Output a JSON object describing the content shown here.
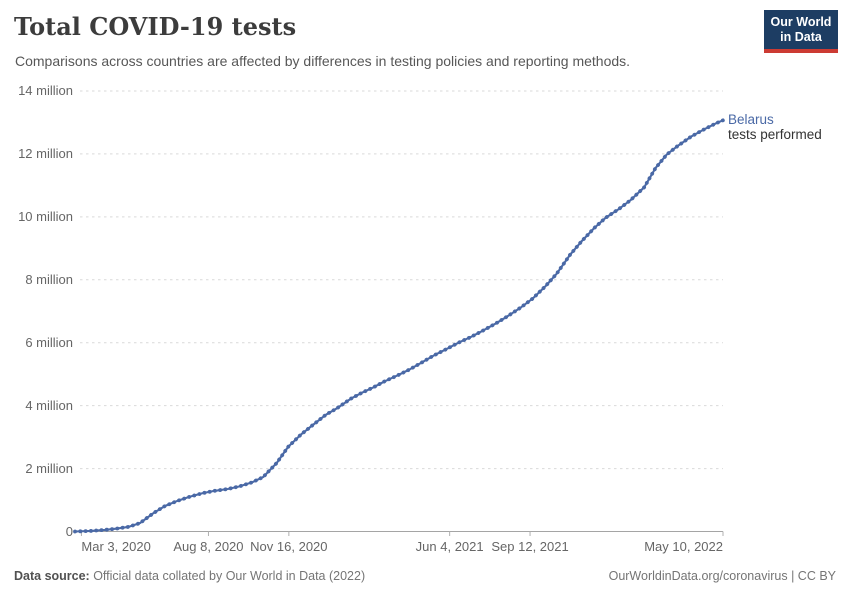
{
  "header": {
    "title": "Total COVID-19 tests",
    "subtitle": "Comparisons across countries are affected by differences in testing policies and reporting methods.",
    "logo": {
      "line1": "Our World",
      "line2": "in Data"
    }
  },
  "series_label": {
    "name": "Belarus",
    "sublabel": "tests performed"
  },
  "footer": {
    "source_label": "Data source:",
    "source_text": " Official data collated by Our World in Data (2022)",
    "link_text": "OurWorldinData.org/coronavirus | CC BY"
  },
  "colors": {
    "line": "#4a69a6",
    "entity_label": "#4a69a6",
    "gridline": "#d9d9d9",
    "axis_line": "#a5a5a5",
    "tick_text": "#666666",
    "logo_bg": "#1d3d63",
    "logo_red": "#cc3b33"
  },
  "chart_data": {
    "type": "line",
    "title": "Total COVID-19 tests",
    "entity": "Belarus",
    "unit": "tests performed",
    "xlabel": "",
    "ylabel": "",
    "ylim": [
      0,
      14000000
    ],
    "grid": "dashed-horizontal",
    "legend_position": "end-of-line-label",
    "y_axis": {
      "ticks": [
        {
          "value": 0,
          "label": "0"
        },
        {
          "value": 2000000,
          "label": "2 million"
        },
        {
          "value": 4000000,
          "label": "4 million"
        },
        {
          "value": 6000000,
          "label": "6 million"
        },
        {
          "value": 8000000,
          "label": "8 million"
        },
        {
          "value": 10000000,
          "label": "10 million"
        },
        {
          "value": 12000000,
          "label": "12 million"
        },
        {
          "value": 14000000,
          "label": "14 million"
        }
      ]
    },
    "x_axis": {
      "ticks": [
        {
          "date": "2020-03-03",
          "label": "Mar 3, 2020"
        },
        {
          "date": "2020-08-08",
          "label": "Aug 8, 2020"
        },
        {
          "date": "2020-11-16",
          "label": "Nov 16, 2020"
        },
        {
          "date": "2021-06-04",
          "label": "Jun 4, 2021"
        },
        {
          "date": "2021-09-12",
          "label": "Sep 12, 2021"
        },
        {
          "date": "2022-05-10",
          "label": "May 10, 2022"
        }
      ]
    },
    "series": [
      {
        "name": "Belarus",
        "points": [
          {
            "date": "2020-02-24",
            "value": 0
          },
          {
            "date": "2020-03-15",
            "value": 20000
          },
          {
            "date": "2020-04-01",
            "value": 50000
          },
          {
            "date": "2020-04-15",
            "value": 90000
          },
          {
            "date": "2020-05-01",
            "value": 150000
          },
          {
            "date": "2020-05-15",
            "value": 270000
          },
          {
            "date": "2020-06-01",
            "value": 590000
          },
          {
            "date": "2020-06-15",
            "value": 810000
          },
          {
            "date": "2020-07-01",
            "value": 980000
          },
          {
            "date": "2020-07-15",
            "value": 1100000
          },
          {
            "date": "2020-08-01",
            "value": 1220000
          },
          {
            "date": "2020-08-15",
            "value": 1290000
          },
          {
            "date": "2020-09-01",
            "value": 1350000
          },
          {
            "date": "2020-09-15",
            "value": 1430000
          },
          {
            "date": "2020-10-01",
            "value": 1560000
          },
          {
            "date": "2020-10-15",
            "value": 1730000
          },
          {
            "date": "2020-11-01",
            "value": 2180000
          },
          {
            "date": "2020-11-15",
            "value": 2690000
          },
          {
            "date": "2020-12-01",
            "value": 3080000
          },
          {
            "date": "2020-12-15",
            "value": 3370000
          },
          {
            "date": "2021-01-01",
            "value": 3710000
          },
          {
            "date": "2021-01-15",
            "value": 3920000
          },
          {
            "date": "2021-02-01",
            "value": 4220000
          },
          {
            "date": "2021-02-15",
            "value": 4410000
          },
          {
            "date": "2021-03-01",
            "value": 4580000
          },
          {
            "date": "2021-03-15",
            "value": 4770000
          },
          {
            "date": "2021-04-01",
            "value": 4970000
          },
          {
            "date": "2021-04-15",
            "value": 5150000
          },
          {
            "date": "2021-05-01",
            "value": 5380000
          },
          {
            "date": "2021-05-15",
            "value": 5590000
          },
          {
            "date": "2021-06-01",
            "value": 5810000
          },
          {
            "date": "2021-06-15",
            "value": 6000000
          },
          {
            "date": "2021-07-01",
            "value": 6190000
          },
          {
            "date": "2021-07-15",
            "value": 6380000
          },
          {
            "date": "2021-08-01",
            "value": 6620000
          },
          {
            "date": "2021-08-15",
            "value": 6840000
          },
          {
            "date": "2021-09-01",
            "value": 7130000
          },
          {
            "date": "2021-09-15",
            "value": 7400000
          },
          {
            "date": "2021-10-01",
            "value": 7790000
          },
          {
            "date": "2021-10-15",
            "value": 8190000
          },
          {
            "date": "2021-11-01",
            "value": 8800000
          },
          {
            "date": "2021-11-15",
            "value": 9220000
          },
          {
            "date": "2021-12-01",
            "value": 9650000
          },
          {
            "date": "2021-12-15",
            "value": 9970000
          },
          {
            "date": "2022-01-01",
            "value": 10260000
          },
          {
            "date": "2022-01-15",
            "value": 10530000
          },
          {
            "date": "2022-02-01",
            "value": 10940000
          },
          {
            "date": "2022-02-15",
            "value": 11550000
          },
          {
            "date": "2022-03-01",
            "value": 11980000
          },
          {
            "date": "2022-03-15",
            "value": 12260000
          },
          {
            "date": "2022-04-01",
            "value": 12560000
          },
          {
            "date": "2022-04-15",
            "value": 12760000
          },
          {
            "date": "2022-05-01",
            "value": 12970000
          },
          {
            "date": "2022-05-10",
            "value": 13070000
          }
        ]
      }
    ]
  }
}
